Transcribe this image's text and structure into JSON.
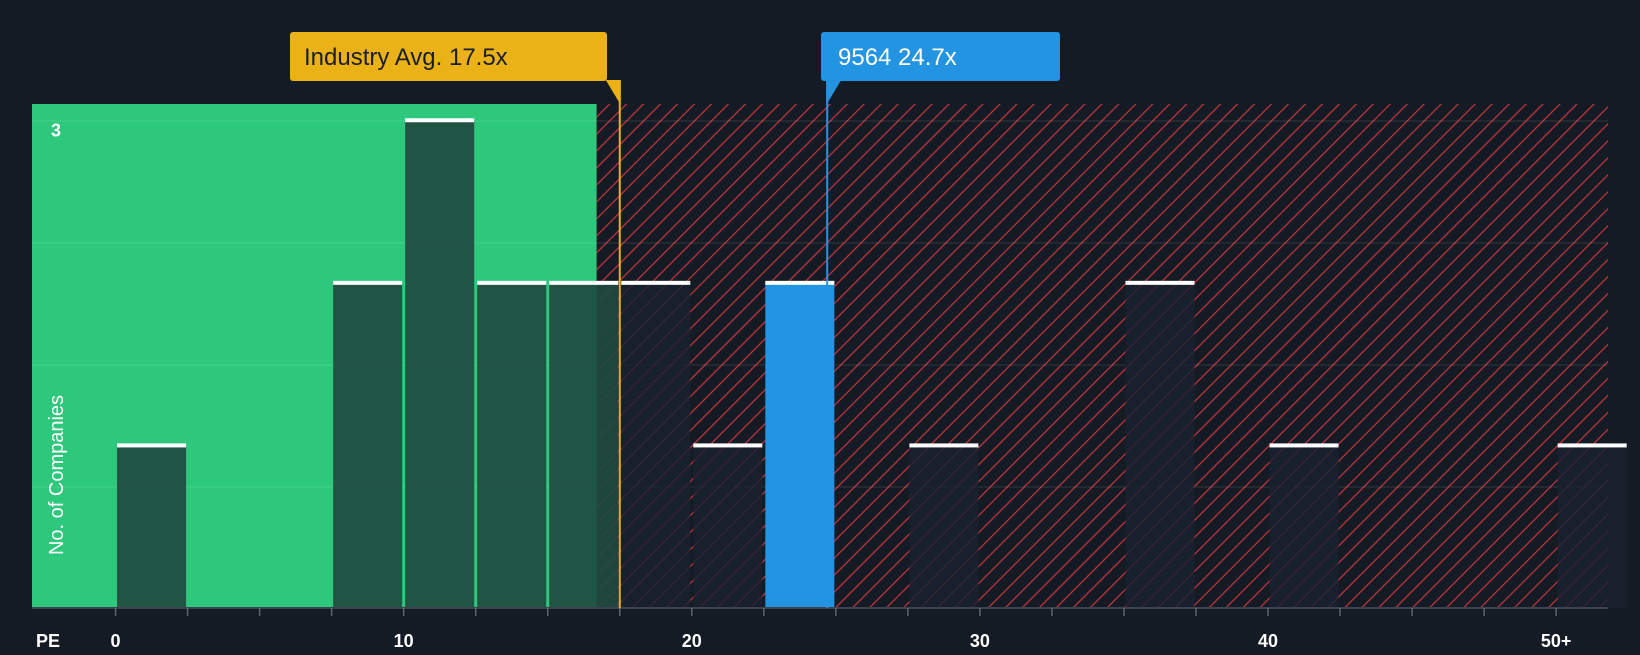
{
  "chart_data": {
    "type": "bar",
    "title": "",
    "xlabel": "PE",
    "ylabel": "No. of Companies",
    "xlim": [
      -2.9,
      51.8
    ],
    "ylim": [
      0,
      3.1
    ],
    "bin_width": 2.5,
    "x_ticks": [
      {
        "value": 0,
        "label": "0"
      },
      {
        "value": 10,
        "label": "10"
      },
      {
        "value": 20,
        "label": "20"
      },
      {
        "value": 30,
        "label": "30"
      },
      {
        "value": 40,
        "label": "40"
      },
      {
        "value": 50,
        "label": "50+"
      }
    ],
    "y_ticks": [
      {
        "value": 3,
        "label": "3"
      }
    ],
    "bars": [
      {
        "x_start": 0,
        "value": 1
      },
      {
        "x_start": 7.5,
        "value": 2
      },
      {
        "x_start": 10,
        "value": 3
      },
      {
        "x_start": 12.5,
        "value": 2
      },
      {
        "x_start": 15,
        "value": 2
      },
      {
        "x_start": 17.5,
        "value": 2
      },
      {
        "x_start": 20,
        "value": 1
      },
      {
        "x_start": 22.5,
        "value": 2,
        "highlight": true
      },
      {
        "x_start": 27.5,
        "value": 1
      },
      {
        "x_start": 35,
        "value": 2
      },
      {
        "x_start": 40,
        "value": 1
      },
      {
        "x_start": 50,
        "value": 1
      }
    ],
    "fair_zone_end": 16.7,
    "industry_avg": {
      "value": 17.5,
      "label": "Industry Avg. 17.5x"
    },
    "company": {
      "ticker": "9564",
      "value": 24.7,
      "label": "9564 24.7x"
    },
    "colors": {
      "background": "#151b24",
      "fair_zone": "#2ec87c",
      "bar_in_fair": "#1f4a3f",
      "bar_in_hatch": "#1a2230",
      "hatch_bg": "#151b24",
      "hatch_line": "#c8353d",
      "highlight_bar": "#2394e2",
      "bar_cap": "#ffffff",
      "industry_accent": "#eab217",
      "company_accent": "#2394e2",
      "axis_text": "#ffffff",
      "grid": "#ffffff"
    }
  }
}
